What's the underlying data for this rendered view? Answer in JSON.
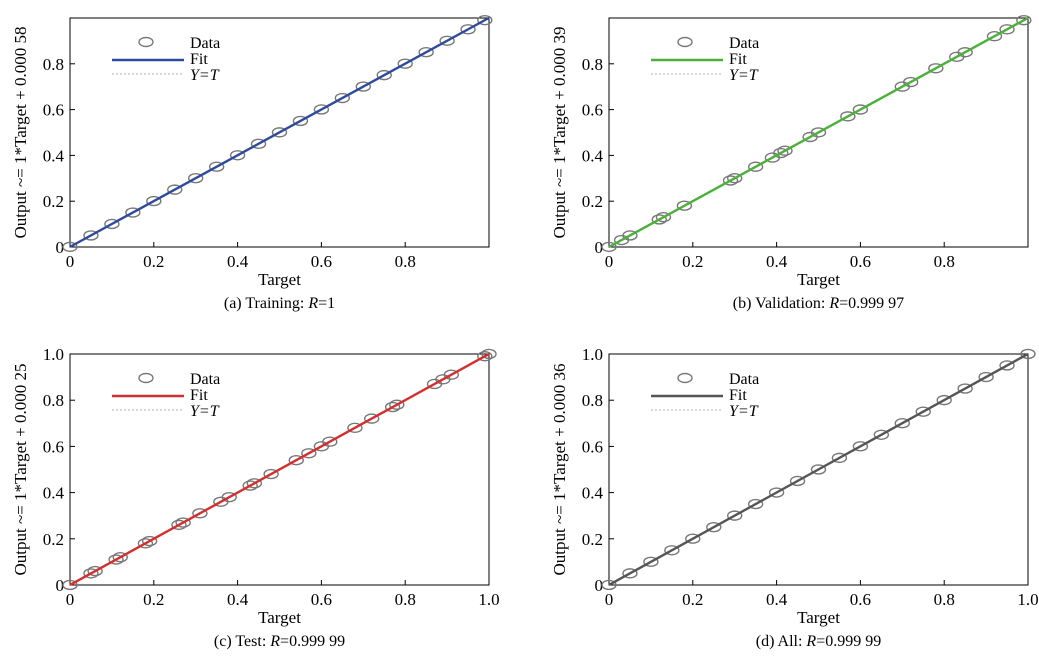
{
  "legend_labels": [
    "Data",
    "Fit",
    "Y=T"
  ],
  "chart_data": [
    {
      "type": "scatter",
      "xlabel": "Target",
      "ylabel": "Output ~= 1*Target + 0.000 58",
      "caption_prefix": "(a) Training: ",
      "caption_r_symbol": "R",
      "caption_r_value": "=1",
      "xlim": [
        0,
        1
      ],
      "ylim": [
        0,
        1
      ],
      "xticks": [
        "0",
        "0.2",
        "0.4",
        "0.6",
        "0.8"
      ],
      "yticks": [
        "0",
        "0.2",
        "0.4",
        "0.6",
        "0.8"
      ],
      "fit_color": "#2e4a9c",
      "fit": {
        "slope": 1,
        "intercept": 0.00058
      },
      "series": [
        {
          "name": "Data",
          "x": [
            0.0,
            0.05,
            0.1,
            0.15,
            0.2,
            0.25,
            0.3,
            0.35,
            0.4,
            0.45,
            0.5,
            0.55,
            0.6,
            0.65,
            0.7,
            0.75,
            0.8,
            0.85,
            0.9,
            0.95,
            0.99
          ]
        }
      ]
    },
    {
      "type": "scatter",
      "xlabel": "Target",
      "ylabel": "Output ~= 1*Target + 0.000 39",
      "caption_prefix": "(b) Validation: ",
      "caption_r_symbol": "R",
      "caption_r_value": "=0.999 97",
      "xlim": [
        0,
        1
      ],
      "ylim": [
        0,
        1
      ],
      "xticks": [
        "0",
        "0.2",
        "0.4",
        "0.6",
        "0.8"
      ],
      "yticks": [
        "0",
        "0.2",
        "0.4",
        "0.6",
        "0.8"
      ],
      "fit_color": "#4caf3a",
      "fit": {
        "slope": 1,
        "intercept": 0.00039
      },
      "series": [
        {
          "name": "Data",
          "x": [
            0.0,
            0.03,
            0.05,
            0.12,
            0.13,
            0.18,
            0.29,
            0.3,
            0.35,
            0.39,
            0.41,
            0.42,
            0.48,
            0.5,
            0.57,
            0.6,
            0.7,
            0.72,
            0.78,
            0.83,
            0.85,
            0.92,
            0.95,
            0.99
          ]
        }
      ]
    },
    {
      "type": "scatter",
      "xlabel": "Target",
      "ylabel": "Output ~= 1*Target + 0.000 25",
      "caption_prefix": "(c) Test: ",
      "caption_r_symbol": "R",
      "caption_r_value": "=0.999 99",
      "xlim": [
        0,
        1
      ],
      "ylim": [
        0,
        1
      ],
      "xticks": [
        "0",
        "0.2",
        "0.4",
        "0.6",
        "0.8",
        "1.0"
      ],
      "yticks": [
        "0",
        "0.2",
        "0.4",
        "0.6",
        "0.8",
        "1.0"
      ],
      "fit_color": "#d32f2f",
      "fit": {
        "slope": 1,
        "intercept": 0.00025
      },
      "series": [
        {
          "name": "Data",
          "x": [
            0.0,
            0.05,
            0.06,
            0.11,
            0.12,
            0.18,
            0.19,
            0.26,
            0.27,
            0.31,
            0.36,
            0.38,
            0.43,
            0.44,
            0.48,
            0.54,
            0.57,
            0.6,
            0.62,
            0.68,
            0.72,
            0.77,
            0.78,
            0.87,
            0.89,
            0.91,
            0.99,
            1.0
          ]
        }
      ]
    },
    {
      "type": "scatter",
      "xlabel": "Target",
      "ylabel": "Output ~= 1*Target + 0.000 36",
      "caption_prefix": "(d) All: ",
      "caption_r_symbol": "R",
      "caption_r_value": "=0.999 99",
      "xlim": [
        0,
        1
      ],
      "ylim": [
        0,
        1
      ],
      "xticks": [
        "0",
        "0.2",
        "0.4",
        "0.6",
        "0.8",
        "1.0"
      ],
      "yticks": [
        "0",
        "0.2",
        "0.4",
        "0.6",
        "0.8",
        "1.0"
      ],
      "fit_color": "#555555",
      "fit": {
        "slope": 1,
        "intercept": 0.00036
      },
      "series": [
        {
          "name": "Data",
          "x": [
            0.0,
            0.05,
            0.1,
            0.15,
            0.2,
            0.25,
            0.3,
            0.35,
            0.4,
            0.45,
            0.5,
            0.55,
            0.6,
            0.65,
            0.7,
            0.75,
            0.8,
            0.85,
            0.9,
            0.95,
            1.0
          ]
        }
      ]
    }
  ]
}
